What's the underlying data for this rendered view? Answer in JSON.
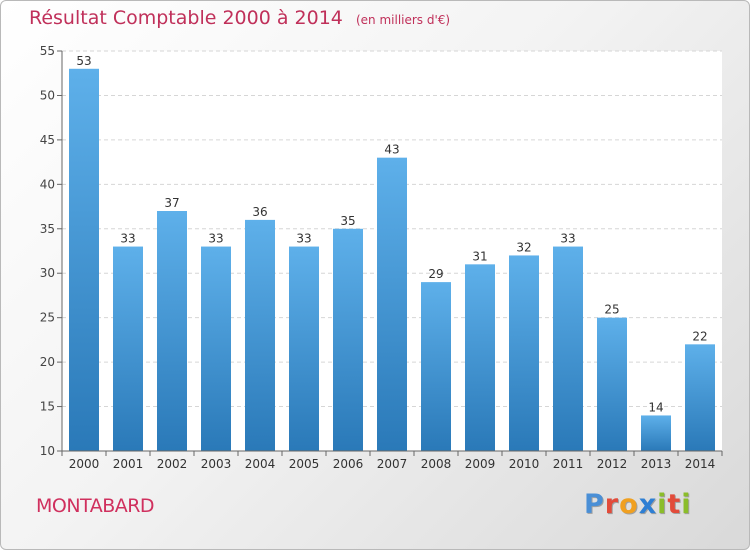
{
  "header": {
    "title": "Résultat Comptable 2000 à 2014",
    "subtitle": "(en milliers d'€)"
  },
  "footer": {
    "location": "MONTABARD",
    "brand_letters": [
      "P",
      "r",
      "o",
      "x",
      "i",
      "t",
      "i"
    ],
    "brand_colors": [
      "#4a8fd6",
      "#e24b3a",
      "#f0a020",
      "#2e7fd4",
      "#8bbd2a",
      "#e24b3a",
      "#8bbd2a"
    ]
  },
  "colors": {
    "bar_top": "#5eb0ea",
    "bar_bottom": "#2a79b8",
    "title": "#c0305a"
  },
  "chart_data": {
    "type": "bar",
    "title": "Résultat Comptable 2000 à 2014",
    "subtitle": "(en milliers d'€)",
    "categories": [
      "2000",
      "2001",
      "2002",
      "2003",
      "2004",
      "2005",
      "2006",
      "2007",
      "2008",
      "2009",
      "2010",
      "2011",
      "2012",
      "2013",
      "2014"
    ],
    "values": [
      53,
      33,
      37,
      33,
      36,
      33,
      35,
      43,
      29,
      31,
      32,
      33,
      25,
      14,
      22
    ],
    "ylim": [
      10,
      55
    ],
    "yticks": [
      10,
      15,
      20,
      25,
      30,
      35,
      40,
      45,
      50,
      55
    ],
    "grid": true,
    "data_labels": true
  }
}
